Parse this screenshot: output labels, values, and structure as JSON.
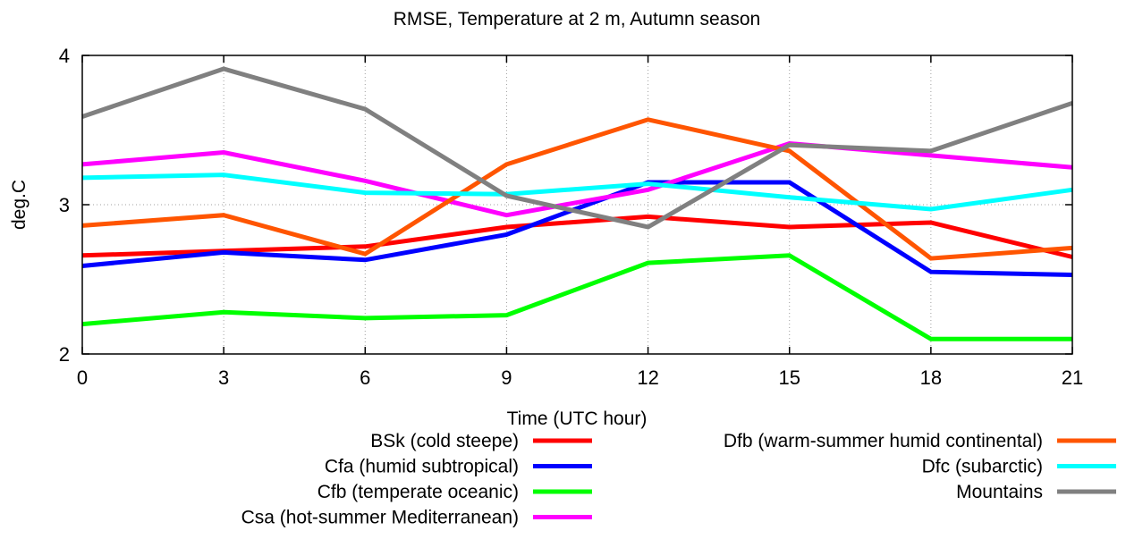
{
  "chart_data": {
    "type": "line",
    "title": "RMSE, Temperature at 2 m, Autumn season",
    "xlabel": "Time (UTC hour)",
    "ylabel": "deg.C",
    "xlim": [
      0,
      21
    ],
    "ylim": [
      2,
      4
    ],
    "xticks": [
      "0",
      "3",
      "6",
      "9",
      "12",
      "15",
      "18",
      "21"
    ],
    "yticks": [
      "2",
      "3",
      "4"
    ],
    "grid": true,
    "legend_position": "bottom",
    "x": [
      0,
      3,
      6,
      9,
      12,
      15,
      18,
      21
    ],
    "series": [
      {
        "name": "BSk (cold steepe)",
        "color": "#ff0000",
        "values": [
          2.66,
          2.69,
          2.72,
          2.85,
          2.92,
          2.85,
          2.88,
          2.65
        ]
      },
      {
        "name": "Cfa (humid subtropical)",
        "color": "#0000ff",
        "values": [
          2.59,
          2.68,
          2.63,
          2.8,
          3.15,
          3.15,
          2.55,
          2.53
        ]
      },
      {
        "name": "Cfb (temperate oceanic)",
        "color": "#00ff00",
        "values": [
          2.2,
          2.28,
          2.24,
          2.26,
          2.61,
          2.66,
          2.1,
          2.1
        ]
      },
      {
        "name": "Csa (hot-summer Mediterranean)",
        "color": "#ff00ff",
        "values": [
          3.27,
          3.35,
          3.16,
          2.93,
          3.1,
          3.41,
          3.33,
          3.25
        ]
      },
      {
        "name": "Dfb (warm-summer humid continental)",
        "color": "#ff5500",
        "values": [
          2.86,
          2.93,
          2.67,
          3.27,
          3.57,
          3.36,
          2.64,
          2.71
        ]
      },
      {
        "name": "Dfc (subarctic)",
        "color": "#00ffff",
        "values": [
          3.18,
          3.2,
          3.08,
          3.07,
          3.14,
          3.05,
          2.97,
          3.1
        ]
      },
      {
        "name": "Mountains",
        "color": "#808080",
        "values": [
          3.59,
          3.91,
          3.64,
          3.06,
          2.85,
          3.4,
          3.36,
          3.68
        ]
      }
    ]
  }
}
